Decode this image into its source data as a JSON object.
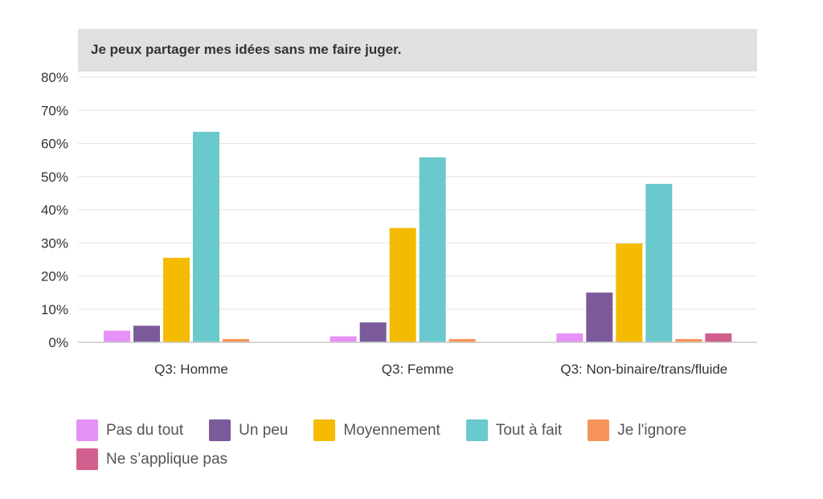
{
  "chart_data": {
    "type": "bar",
    "title": "Je peux partager mes idées sans me faire juger.",
    "xlabel": "",
    "ylabel": "",
    "ylim": [
      0,
      80
    ],
    "yticks": [
      "0%",
      "10%",
      "20%",
      "30%",
      "40%",
      "50%",
      "60%",
      "70%",
      "80%"
    ],
    "categories": [
      "Q3: Homme",
      "Q3: Femme",
      "Q3: Non-binaire/trans/fluide"
    ],
    "series": [
      {
        "name": "Pas du tout",
        "color": "#e591f5",
        "values": [
          3.5,
          1.8,
          2.7
        ]
      },
      {
        "name": "Un peu",
        "color": "#7b5a9a",
        "values": [
          5,
          6,
          15
        ]
      },
      {
        "name": "Moyennement",
        "color": "#f5bb00",
        "values": [
          25.5,
          34.5,
          29.8
        ]
      },
      {
        "name": "Tout à fait",
        "color": "#6ac9cc",
        "values": [
          63.5,
          55.8,
          47.8
        ]
      },
      {
        "name": "Je l'ignore",
        "color": "#f7945b",
        "values": [
          1,
          1,
          1
        ]
      },
      {
        "name": "Ne s’applique pas",
        "color": "#d15f8e",
        "values": [
          0,
          0,
          2.7
        ]
      }
    ],
    "grid": true,
    "legend_position": "bottom"
  }
}
